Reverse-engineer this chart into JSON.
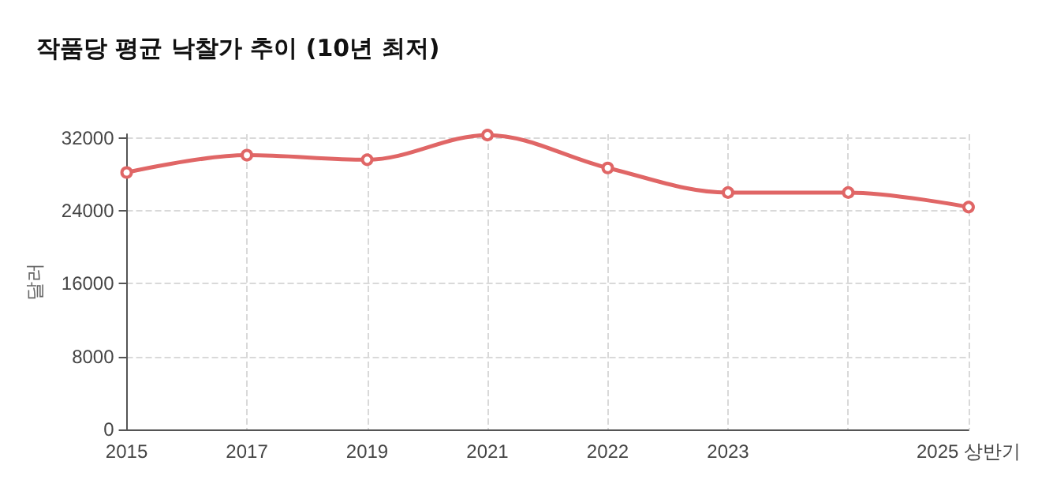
{
  "chart_data": {
    "type": "line",
    "title": "작품당 평균 낙찰가 추이 (10년 최저)",
    "ylabel": "달러",
    "categories": [
      "2015",
      "2017",
      "2019",
      "2021",
      "2022",
      "2023",
      null,
      "2025 상반기"
    ],
    "series": [
      {
        "color": "#e06666",
        "values": [
          28200,
          30100,
          29600,
          32300,
          28700,
          26000,
          26000,
          24400
        ]
      }
    ],
    "ylim": [
      0,
      32400
    ],
    "yticks": [
      0,
      8000,
      16000,
      24000,
      32000
    ],
    "grid": true,
    "marker": "circle",
    "line_style": "solid"
  }
}
